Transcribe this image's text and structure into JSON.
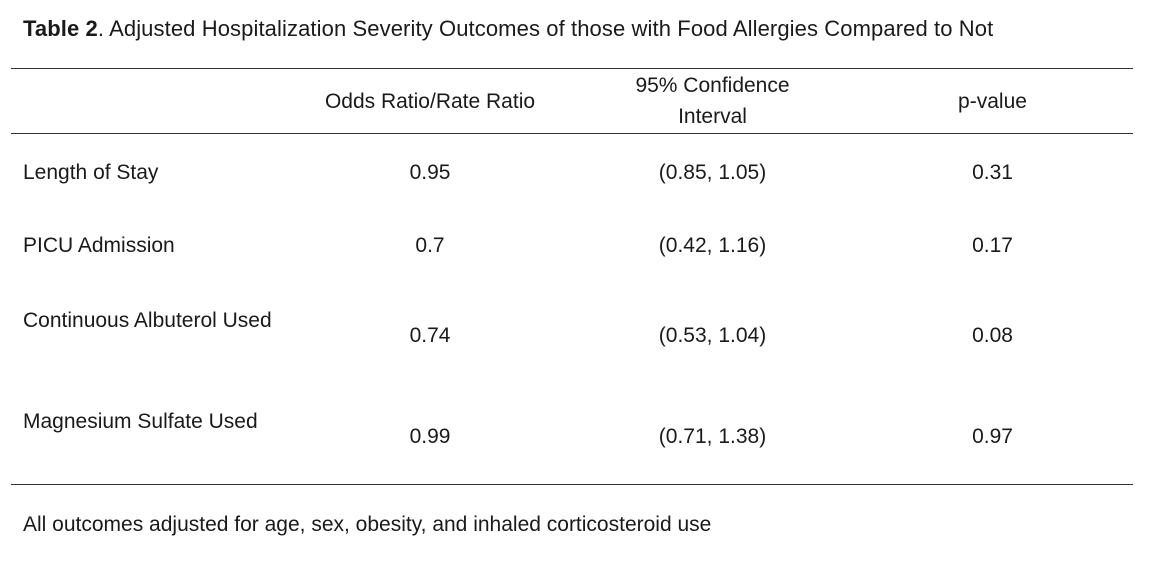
{
  "caption": {
    "label": "Table 2",
    "text": ". Adjusted Hospitalization Severity Outcomes of those with Food Allergies Compared to Not"
  },
  "table": {
    "headers": [
      "",
      "Odds Ratio/Rate Ratio",
      "95% Confidence Interval",
      "p-value"
    ],
    "rows": [
      {
        "label": "Length of Stay",
        "ratio": "0.95",
        "ci": "(0.85, 1.05)",
        "p": "0.31"
      },
      {
        "label": "PICU Admission",
        "ratio": "0.7",
        "ci": "(0.42, 1.16)",
        "p": "0.17"
      },
      {
        "label": "Continuous Albuterol Used",
        "ratio": "0.74",
        "ci": "(0.53, 1.04)",
        "p": "0.08"
      },
      {
        "label": "Magnesium Sulfate Used",
        "ratio": "0.99",
        "ci": "(0.71, 1.38)",
        "p": "0.97"
      }
    ]
  },
  "footnote": "All outcomes adjusted for age, sex, obesity, and inhaled corticosteroid use"
}
